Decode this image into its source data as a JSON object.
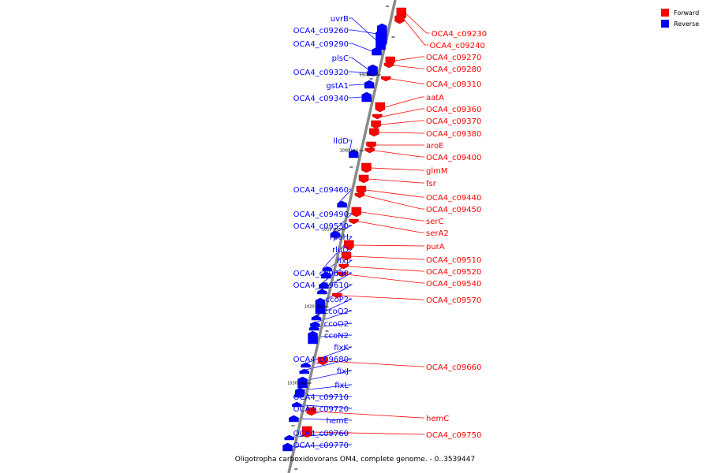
{
  "caption": "Oligotropha carboxidovorans OM4, complete genome. - 0..3539447",
  "legend": [
    {
      "label": "Forward",
      "color": "#ff0000"
    },
    {
      "label": "Reverse",
      "color": "#0000ff"
    }
  ],
  "scale_ticks": [
    "990 kbp",
    "1000 kbp",
    "1010 kbp",
    "1020 kbp",
    "1030 kbp"
  ],
  "reverse_genes": [
    "uvrB",
    "OCA4_c09260",
    "OCA4_c09290",
    "plsC",
    "OCA4_c09320",
    "gstA1",
    "OCA4_c09340",
    "lldD",
    "OCA4_c09460",
    "OCA4_c09490",
    "OCA4_c09530",
    "rpoH",
    "rluD",
    "fixI",
    "OCA4_c09600",
    "OCA4_c09610",
    "ccoP2",
    "ccoQ2",
    "ccoO2",
    "ccoN2",
    "fixK",
    "OCA4_c09680",
    "fixJ",
    "fixL",
    "OCA4_c09710",
    "OCA4_c09720",
    "hemE",
    "OCA4_c09760",
    "OCA4_c09770"
  ],
  "forward_genes": [
    "OCA4_c09230",
    "OCA4_c09240",
    "OCA4_c09270",
    "OCA4_c09280",
    "OCA4_c09310",
    "aatA",
    "OCA4_c09360",
    "OCA4_c09370",
    "OCA4_c09380",
    "aroE",
    "OCA4_c09400",
    "glmM",
    "fsr",
    "OCA4_c09440",
    "OCA4_c09450",
    "serC",
    "serA2",
    "purA",
    "OCA4_c09510",
    "OCA4_c09520",
    "OCA4_c09540",
    "OCA4_c09570",
    "OCA4_c09660",
    "hemC",
    "OCA4_c09750"
  ]
}
